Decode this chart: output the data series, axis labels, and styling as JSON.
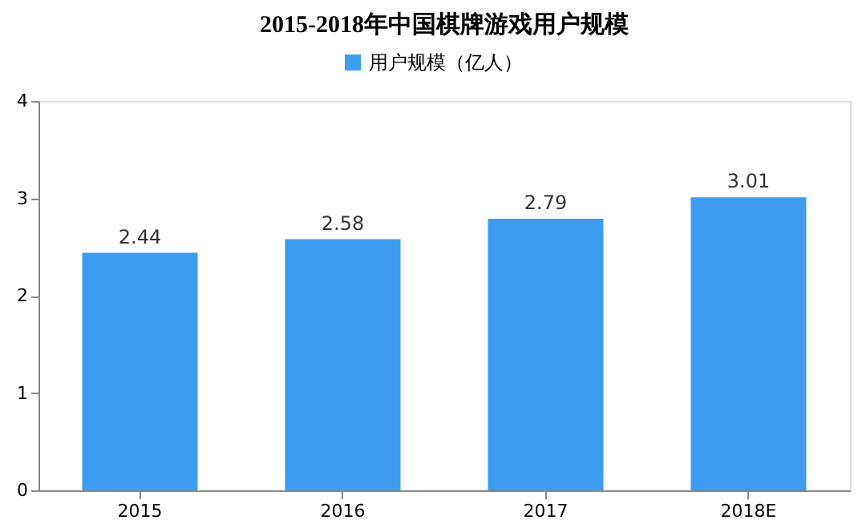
{
  "chart_data": {
    "type": "bar",
    "title": "2015-2018年中国棋牌游戏用户规模",
    "categories": [
      "2015",
      "2016",
      "2017",
      "2018E"
    ],
    "series": [
      {
        "name": "用户规模（亿人）",
        "color": "#3d9cf0",
        "values": [
          2.44,
          2.58,
          2.79,
          3.01
        ]
      }
    ],
    "ylim": [
      0,
      4
    ],
    "yticks": [
      0,
      1,
      2,
      3,
      4
    ],
    "grid": false,
    "legend": "top",
    "data_labels": true
  }
}
